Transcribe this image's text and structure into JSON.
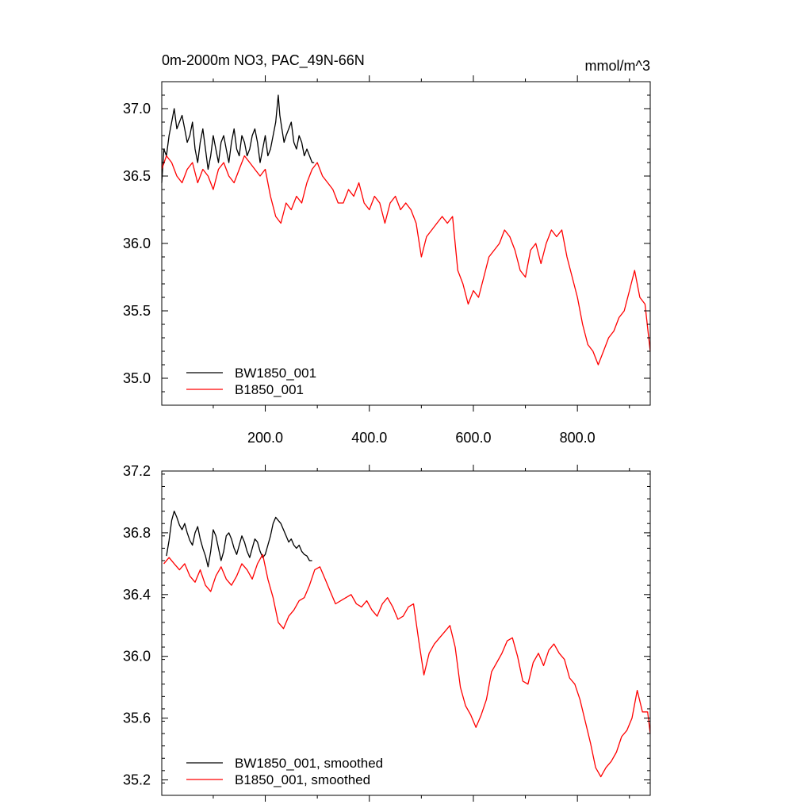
{
  "panels": [
    {
      "id": "raw",
      "title": "0m-2000m NO3, PAC_49N-66N",
      "units": "mmol/m^3",
      "chart_data": {
        "type": "line",
        "title": "0m-2000m NO3, PAC_49N-66N",
        "xlabel": "",
        "ylabel": "",
        "units": "mmol/m^3",
        "xlim": [
          1,
          940
        ],
        "ylim": [
          34.8,
          37.2
        ],
        "xticks": [
          200,
          400,
          600,
          800
        ],
        "xtick_labels": [
          "200.0",
          "400.0",
          "600.0",
          "800.0"
        ],
        "yticks": [
          35.0,
          35.5,
          36.0,
          36.5,
          37.0
        ],
        "ytick_labels": [
          "35.0",
          "35.5",
          "36.0",
          "36.5",
          "37.0"
        ],
        "grid": false,
        "legend_position": "bottom-left",
        "series": [
          {
            "name": "BW1850_001",
            "color": "#000000",
            "x": [
              1,
              5,
              10,
              15,
              20,
              25,
              30,
              35,
              40,
              45,
              50,
              55,
              60,
              65,
              70,
              75,
              80,
              85,
              90,
              95,
              100,
              105,
              110,
              115,
              120,
              125,
              130,
              135,
              140,
              145,
              150,
              155,
              160,
              165,
              170,
              175,
              180,
              185,
              190,
              195,
              200,
              205,
              210,
              215,
              220,
              225,
              228,
              232,
              236,
              240,
              245,
              250,
              255,
              260,
              265,
              270,
              275,
              280,
              285,
              290,
              294
            ],
            "y": [
              36.45,
              36.7,
              36.65,
              36.8,
              36.9,
              37.0,
              36.85,
              36.9,
              36.95,
              36.85,
              36.75,
              36.8,
              36.9,
              36.7,
              36.6,
              36.75,
              36.85,
              36.7,
              36.55,
              36.65,
              36.8,
              36.7,
              36.6,
              36.75,
              36.8,
              36.7,
              36.6,
              36.75,
              36.85,
              36.7,
              36.65,
              36.8,
              36.75,
              36.65,
              36.7,
              36.8,
              36.85,
              36.75,
              36.6,
              36.7,
              36.8,
              36.65,
              36.7,
              36.8,
              36.9,
              37.1,
              36.95,
              36.85,
              36.75,
              36.8,
              36.85,
              36.9,
              36.75,
              36.7,
              36.8,
              36.75,
              36.65,
              36.7,
              36.65,
              36.6,
              36.6
            ]
          },
          {
            "name": "B1850_001",
            "color": "#ff0000",
            "x": [
              1,
              10,
              20,
              30,
              40,
              50,
              60,
              70,
              80,
              90,
              100,
              110,
              120,
              130,
              140,
              150,
              160,
              170,
              180,
              190,
              200,
              210,
              220,
              230,
              240,
              250,
              260,
              270,
              280,
              290,
              300,
              310,
              320,
              330,
              340,
              350,
              360,
              370,
              380,
              390,
              400,
              410,
              420,
              430,
              440,
              450,
              460,
              470,
              480,
              490,
              500,
              510,
              520,
              530,
              540,
              550,
              560,
              570,
              580,
              590,
              600,
              610,
              620,
              630,
              640,
              650,
              660,
              670,
              680,
              690,
              700,
              710,
              720,
              730,
              740,
              750,
              760,
              770,
              780,
              790,
              800,
              810,
              820,
              830,
              840,
              850,
              860,
              870,
              880,
              890,
              900,
              910,
              920,
              930,
              940
            ],
            "y": [
              36.55,
              36.65,
              36.6,
              36.5,
              36.45,
              36.55,
              36.6,
              36.45,
              36.55,
              36.5,
              36.4,
              36.55,
              36.6,
              36.5,
              36.45,
              36.55,
              36.65,
              36.6,
              36.55,
              36.5,
              36.55,
              36.35,
              36.2,
              36.15,
              36.3,
              36.25,
              36.35,
              36.3,
              36.45,
              36.55,
              36.6,
              36.5,
              36.45,
              36.4,
              36.3,
              36.3,
              36.4,
              36.35,
              36.45,
              36.3,
              36.25,
              36.35,
              36.3,
              36.15,
              36.3,
              36.35,
              36.25,
              36.3,
              36.25,
              36.15,
              35.9,
              36.05,
              36.1,
              36.15,
              36.2,
              36.15,
              36.2,
              35.8,
              35.7,
              35.55,
              35.65,
              35.6,
              35.75,
              35.9,
              35.95,
              36.0,
              36.1,
              36.05,
              35.95,
              35.8,
              35.75,
              35.95,
              36.0,
              35.85,
              36.0,
              36.1,
              36.05,
              36.1,
              35.9,
              35.75,
              35.6,
              35.4,
              35.25,
              35.2,
              35.1,
              35.2,
              35.3,
              35.35,
              35.45,
              35.5,
              35.65,
              35.8,
              35.6,
              35.55,
              35.2
            ]
          }
        ]
      }
    },
    {
      "id": "smoothed",
      "title": "",
      "units": "",
      "chart_data": {
        "type": "line",
        "title": "",
        "xlabel": "",
        "ylabel": "",
        "xlim": [
          1,
          940
        ],
        "ylim": [
          35.1,
          37.2
        ],
        "xticks": [
          200,
          400,
          600,
          800
        ],
        "xtick_labels": [],
        "yticks": [
          35.2,
          35.6,
          36.0,
          36.4,
          36.8,
          37.2
        ],
        "ytick_labels": [
          "35.2",
          "35.6",
          "36.0",
          "36.4",
          "36.8",
          "37.2"
        ],
        "grid": false,
        "legend_position": "bottom-left",
        "series": [
          {
            "name": "BW1850_001, smoothed",
            "color": "#000000",
            "x": [
              10,
              15,
              20,
              25,
              30,
              35,
              40,
              45,
              50,
              55,
              60,
              65,
              70,
              75,
              80,
              85,
              90,
              95,
              100,
              105,
              110,
              115,
              120,
              125,
              130,
              135,
              140,
              145,
              150,
              155,
              160,
              165,
              170,
              175,
              180,
              185,
              190,
              195,
              200,
              205,
              210,
              215,
              220,
              225,
              230,
              235,
              240,
              245,
              250,
              255,
              260,
              265,
              270,
              275,
              280,
              285,
              290
            ],
            "y": [
              36.65,
              36.75,
              36.88,
              36.94,
              36.9,
              36.85,
              36.82,
              36.86,
              36.8,
              36.75,
              36.72,
              36.8,
              36.84,
              36.76,
              36.7,
              36.65,
              36.58,
              36.68,
              36.82,
              36.78,
              36.7,
              36.62,
              36.68,
              36.78,
              36.8,
              36.76,
              36.7,
              36.66,
              36.72,
              36.78,
              36.74,
              36.68,
              36.64,
              36.7,
              36.76,
              36.74,
              36.68,
              36.64,
              36.66,
              36.72,
              36.78,
              36.86,
              36.9,
              36.88,
              36.86,
              36.82,
              36.78,
              36.74,
              36.76,
              36.72,
              36.7,
              36.72,
              36.68,
              36.66,
              36.65,
              36.62,
              36.62
            ]
          },
          {
            "name": "B1850_001, smoothed",
            "color": "#ff0000",
            "x": [
              5,
              15,
              25,
              35,
              45,
              55,
              65,
              75,
              85,
              95,
              105,
              115,
              125,
              135,
              145,
              155,
              165,
              175,
              185,
              195,
              205,
              215,
              225,
              235,
              245,
              255,
              265,
              275,
              285,
              295,
              305,
              315,
              325,
              335,
              345,
              355,
              365,
              375,
              385,
              395,
              405,
              415,
              425,
              435,
              445,
              455,
              465,
              475,
              485,
              495,
              505,
              515,
              525,
              535,
              545,
              555,
              565,
              575,
              585,
              595,
              605,
              615,
              625,
              635,
              645,
              655,
              665,
              675,
              685,
              695,
              705,
              715,
              725,
              735,
              745,
              755,
              765,
              775,
              785,
              795,
              805,
              815,
              825,
              835,
              845,
              855,
              865,
              875,
              885,
              895,
              905,
              915,
              925,
              935,
              940
            ],
            "y": [
              36.6,
              36.64,
              36.6,
              36.56,
              36.6,
              36.52,
              36.48,
              36.56,
              36.46,
              36.42,
              36.52,
              36.58,
              36.5,
              36.46,
              36.52,
              36.6,
              36.56,
              36.5,
              36.6,
              36.66,
              36.5,
              36.38,
              36.22,
              36.18,
              36.26,
              36.3,
              36.36,
              36.38,
              36.46,
              36.56,
              36.58,
              36.5,
              36.42,
              36.34,
              36.36,
              36.38,
              36.4,
              36.34,
              36.32,
              36.36,
              36.3,
              36.26,
              36.34,
              36.38,
              36.32,
              36.24,
              36.26,
              36.32,
              36.34,
              36.1,
              35.88,
              36.02,
              36.08,
              36.12,
              36.16,
              36.2,
              36.06,
              35.8,
              35.68,
              35.62,
              35.54,
              35.62,
              35.72,
              35.9,
              35.96,
              36.02,
              36.1,
              36.12,
              36.0,
              35.84,
              35.82,
              35.96,
              36.02,
              35.94,
              36.04,
              36.08,
              36.02,
              35.98,
              35.86,
              35.82,
              35.72,
              35.58,
              35.44,
              35.28,
              35.22,
              35.28,
              35.32,
              35.38,
              35.48,
              35.52,
              35.6,
              35.78,
              35.64,
              35.64,
              35.5
            ]
          }
        ]
      }
    }
  ]
}
